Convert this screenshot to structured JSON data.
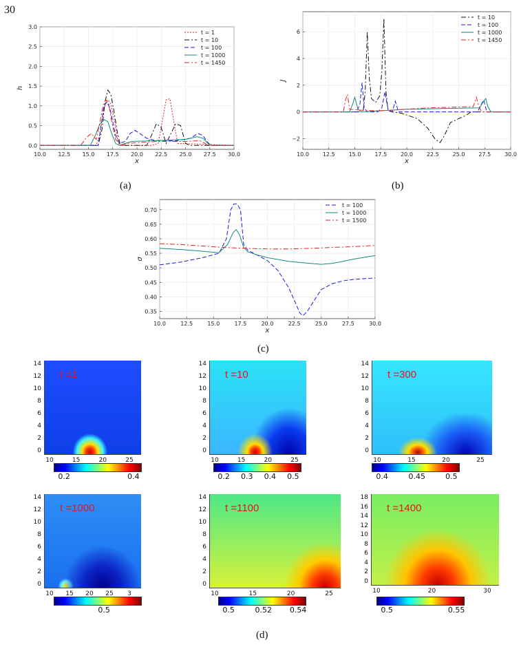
{
  "page_number": "30",
  "captions": [
    "(a)",
    "(b)",
    "(c)",
    "(d)"
  ],
  "chart_data": [
    {
      "type": "line",
      "panel": "(a)",
      "xlabel": "x",
      "ylabel": "h",
      "xlim": [
        10,
        30
      ],
      "ylim": [
        -0.1,
        3.0
      ],
      "xticks": [
        "10.0",
        "12.5",
        "15.0",
        "17.5",
        "20.0",
        "22.5",
        "25.0",
        "27.5",
        "30.0"
      ],
      "yticks": [
        "0.0",
        "0.5",
        "1.0",
        "1.5",
        "2.0",
        "2.5",
        "3.0"
      ],
      "grid": true,
      "legend_position": "top-right",
      "series": [
        {
          "name": "t = 1",
          "color": "#e32020",
          "dash": "2,2",
          "x": [
            10,
            15.8,
            16.2,
            16.5,
            16.8,
            17.0,
            17.3,
            17.7,
            18.0,
            18.2,
            20,
            21.5,
            22.2,
            22.6,
            23.0,
            23.4,
            23.8,
            24.2,
            30
          ],
          "y": [
            0,
            0,
            0.3,
            0.8,
            1.1,
            1.15,
            1.05,
            0.6,
            0.15,
            0,
            0,
            0,
            0.05,
            0.6,
            1.15,
            1.18,
            0.6,
            0.05,
            0
          ]
        },
        {
          "name": "t = 10",
          "color": "#111111",
          "dash": "7,3,2,3",
          "x": [
            10,
            16.0,
            16.4,
            16.7,
            17.0,
            17.3,
            17.6,
            18.0,
            18.3,
            20,
            21.0,
            21.5,
            22.0,
            22.5,
            23.0,
            23.5,
            24.0,
            24.5,
            25.0,
            25.5,
            30
          ],
          "y": [
            0,
            0,
            0.4,
            1.1,
            1.4,
            1.3,
            0.9,
            0.3,
            0,
            0,
            0,
            0.25,
            0.55,
            0.45,
            0.05,
            0.3,
            0.55,
            0.5,
            0.05,
            0,
            0
          ]
        },
        {
          "name": "t = 100",
          "color": "#1a1adf",
          "dash": "6,3",
          "x": [
            10,
            16.0,
            16.3,
            16.6,
            16.9,
            17.2,
            17.5,
            17.8,
            18.2,
            18.8,
            19.3,
            19.8,
            20.3,
            21.0,
            22,
            24,
            25.5,
            26.3,
            26.8,
            27.2,
            27.6,
            30
          ],
          "y": [
            0,
            0,
            0.5,
            1.0,
            1.1,
            0.95,
            0.6,
            0.25,
            0.05,
            0.1,
            0.3,
            0.38,
            0.3,
            0.18,
            0.12,
            0.12,
            0.18,
            0.3,
            0.25,
            0.1,
            0,
            0
          ]
        },
        {
          "name": "t = 1000",
          "color": "#138a7a",
          "dash": "",
          "x": [
            10,
            15.2,
            15.7,
            16.2,
            16.6,
            17.0,
            17.4,
            17.8,
            18.2,
            18.8,
            19.5,
            22,
            25,
            26.2,
            26.8,
            27.3,
            27.7,
            30
          ],
          "y": [
            0,
            0,
            0.25,
            0.55,
            0.65,
            0.6,
            0.3,
            0.05,
            0,
            0.05,
            0.1,
            0.12,
            0.15,
            0.22,
            0.18,
            0.05,
            0,
            0
          ]
        },
        {
          "name": "t = 1450",
          "color": "#e32020",
          "dash": "7,3,2,3",
          "x": [
            10,
            14.2,
            14.8,
            15.3,
            15.8,
            16.2,
            16.5,
            16.8,
            17.1,
            17.4,
            17.8,
            18.3,
            19,
            22,
            25,
            26.5,
            27.0,
            27.3,
            30
          ],
          "y": [
            0,
            0,
            0.2,
            0.3,
            0.15,
            0.6,
            1.0,
            1.15,
            1.05,
            0.6,
            0.15,
            0,
            0.05,
            0.1,
            0.1,
            0.12,
            0.05,
            0,
            0
          ]
        }
      ]
    },
    {
      "type": "line",
      "panel": "(b)",
      "xlabel": "x",
      "ylabel": "J",
      "xlim": [
        10,
        30
      ],
      "ylim": [
        -2.8,
        7.5
      ],
      "xticks": [
        "10.0",
        "12.5",
        "15.0",
        "17.5",
        "20.0",
        "22.5",
        "25.0",
        "27.5",
        "30.0"
      ],
      "yticks": [
        "−2",
        "0",
        "2",
        "4",
        "6"
      ],
      "grid": true,
      "legend_position": "top-right",
      "series": [
        {
          "name": "t = 10",
          "color": "#111111",
          "dash": "7,3,2,3",
          "x": [
            10,
            15.8,
            16.0,
            16.2,
            16.4,
            16.6,
            17.0,
            17.4,
            17.6,
            17.8,
            18.0,
            18.2,
            18.6,
            19.5,
            21.0,
            22.0,
            22.7,
            23.2,
            23.6,
            24.2,
            25.0,
            25.6,
            26.2,
            30
          ],
          "y": [
            0,
            0,
            1.5,
            6.0,
            2.5,
            1.0,
            0.7,
            1.2,
            3.0,
            7.0,
            1.5,
            0.1,
            0,
            -0.1,
            -0.5,
            -1.2,
            -2.0,
            -2.3,
            -1.8,
            -0.8,
            -0.5,
            -0.3,
            0,
            0
          ]
        },
        {
          "name": "t = 100",
          "color": "#1a1adf",
          "dash": "6,3",
          "x": [
            10,
            15.2,
            15.5,
            15.7,
            15.9,
            16.2,
            17.2,
            17.6,
            17.9,
            18.2,
            18.6,
            18.9,
            19.2,
            20,
            26.8,
            27.2,
            27.4,
            27.7,
            30
          ],
          "y": [
            0,
            0,
            0.6,
            2.2,
            0.3,
            0,
            0,
            0.3,
            1.5,
            0.2,
            0,
            0.8,
            0,
            0,
            0,
            0.6,
            0.9,
            0,
            0
          ]
        },
        {
          "name": "t = 1000",
          "color": "#138a7a",
          "dash": "",
          "x": [
            10,
            14.5,
            14.8,
            15.0,
            15.3,
            15.6,
            20,
            27.0,
            27.4,
            27.6,
            27.8,
            28.1,
            30
          ],
          "y": [
            0,
            0,
            0.6,
            1.1,
            0.2,
            0,
            0.2,
            0.3,
            0.8,
            1.0,
            0.4,
            0,
            0
          ]
        },
        {
          "name": "t = 1450",
          "color": "#e32020",
          "dash": "7,3,2,3",
          "x": [
            10,
            13.9,
            14.1,
            14.3,
            14.5,
            16,
            18,
            22,
            26.4,
            26.7,
            26.9,
            27.2,
            30
          ],
          "y": [
            0,
            0,
            0.9,
            1.3,
            0.2,
            0.1,
            0.1,
            0.3,
            0.4,
            1.1,
            0.5,
            0,
            0
          ]
        }
      ]
    },
    {
      "type": "line",
      "panel": "(c)",
      "xlabel": "x",
      "ylabel": "σ",
      "xlim": [
        10,
        30
      ],
      "ylim": [
        0.325,
        0.735
      ],
      "xticks": [
        "10.0",
        "12.5",
        "15.0",
        "17.5",
        "20.0",
        "22.5",
        "25.0",
        "27.5",
        "30.0"
      ],
      "yticks": [
        "0.35",
        "0.40",
        "0.45",
        "0.50",
        "0.55",
        "0.60",
        "0.65",
        "0.70"
      ],
      "grid": true,
      "legend_position": "top-right",
      "series": [
        {
          "name": "t = 100",
          "color": "#1a1adf",
          "dash": "6,3",
          "x": [
            10,
            12,
            14,
            15.5,
            16.2,
            16.6,
            16.9,
            17.2,
            17.5,
            17.8,
            18.2,
            19.0,
            20.0,
            21.0,
            22.0,
            22.6,
            23.0,
            23.3,
            23.7,
            24.3,
            25.0,
            26.0,
            27.0,
            28.0,
            30.0
          ],
          "y": [
            0.51,
            0.52,
            0.535,
            0.55,
            0.6,
            0.7,
            0.72,
            0.72,
            0.7,
            0.58,
            0.56,
            0.545,
            0.525,
            0.49,
            0.43,
            0.38,
            0.345,
            0.335,
            0.35,
            0.385,
            0.425,
            0.445,
            0.455,
            0.46,
            0.465
          ]
        },
        {
          "name": "t = 1000",
          "color": "#138a7a",
          "dash": "",
          "x": [
            10,
            12,
            14,
            15.5,
            16.3,
            16.8,
            17.1,
            17.4,
            17.8,
            18.2,
            19.0,
            20.0,
            22.0,
            24.0,
            25.0,
            26.0,
            27.0,
            28.0,
            30.0
          ],
          "y": [
            0.567,
            0.563,
            0.557,
            0.552,
            0.58,
            0.62,
            0.632,
            0.615,
            0.57,
            0.555,
            0.545,
            0.535,
            0.522,
            0.515,
            0.512,
            0.515,
            0.522,
            0.53,
            0.542
          ]
        },
        {
          "name": "t = 1500",
          "color": "#e32020",
          "dash": "7,3,2,3",
          "x": [
            10,
            12,
            14,
            16,
            18,
            20,
            22,
            24,
            26,
            28,
            30
          ],
          "y": [
            0.583,
            0.58,
            0.575,
            0.57,
            0.567,
            0.565,
            0.565,
            0.567,
            0.57,
            0.573,
            0.577
          ]
        }
      ]
    },
    {
      "type": "heatmap",
      "panel": "(d)",
      "panels": [
        {
          "label": "t =1",
          "xticks": [
            "10",
            "15",
            "20",
            "25"
          ],
          "yticks": [
            "0",
            "2",
            "4",
            "6",
            "8",
            "10",
            "12",
            "14"
          ],
          "cbar_ticks": [
            "0.2",
            "0.4"
          ]
        },
        {
          "label": "t =10",
          "xticks": [
            "10",
            "15",
            "20",
            "25"
          ],
          "yticks": [
            "0",
            "2",
            "4",
            "6",
            "8",
            "10",
            "12",
            "14"
          ],
          "cbar_ticks": [
            "0.2",
            "0.3",
            "0.4",
            "0.5"
          ]
        },
        {
          "label": "t =300",
          "xticks": [
            "10",
            "15",
            "20",
            "25"
          ],
          "yticks": [
            "0",
            "2",
            "4",
            "6",
            "8",
            "10",
            "12",
            "14"
          ],
          "cbar_ticks": [
            "0.4",
            "0.45",
            "0.5"
          ]
        },
        {
          "label": "t =1000",
          "xticks": [
            "10",
            "15",
            "20",
            "25",
            "3"
          ],
          "yticks": [
            "0",
            "2",
            "4",
            "6",
            "8",
            "10",
            "12",
            "14"
          ],
          "cbar_ticks": [
            "0.5"
          ]
        },
        {
          "label": "t =1100",
          "xticks": [
            "10",
            "15",
            "20",
            "25"
          ],
          "yticks": [
            "0",
            "2",
            "4",
            "6",
            "8",
            "10",
            "12",
            "14"
          ],
          "cbar_ticks": [
            "0.5",
            "0.52",
            "0.54"
          ]
        },
        {
          "label": "t =1400",
          "xticks": [
            "10",
            "20",
            "30"
          ],
          "yticks": [
            "0",
            "2",
            "4",
            "6",
            "8",
            "10",
            "12",
            "14",
            "16",
            "18"
          ],
          "cbar_ticks": [
            "0.5",
            "0.55"
          ]
        }
      ]
    }
  ]
}
